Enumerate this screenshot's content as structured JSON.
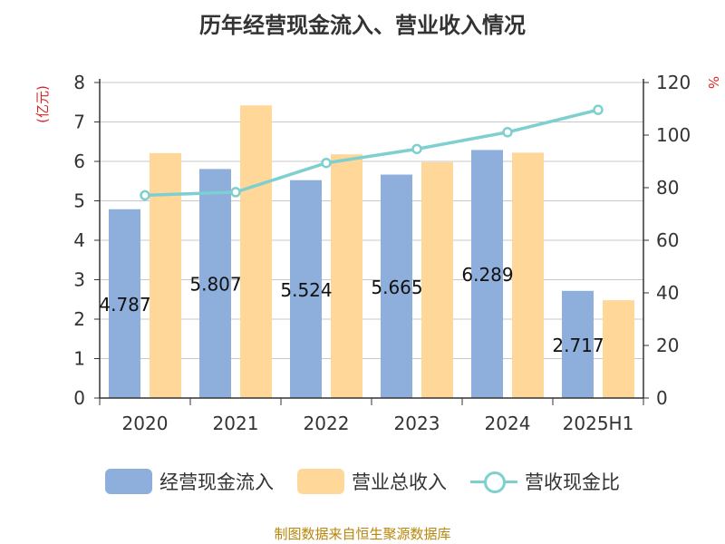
{
  "chart_data": {
    "type": "bar",
    "title": "历年经营现金流入、营业收入情况",
    "left_unit": "(亿元)",
    "right_unit": "%",
    "categories": [
      "2020",
      "2021",
      "2022",
      "2023",
      "2024",
      "2025H1"
    ],
    "ylim": [
      0,
      8
    ],
    "y_ticks": [
      "0",
      "1",
      "2",
      "3",
      "4",
      "5",
      "6",
      "7",
      "8"
    ],
    "y2lim": [
      0,
      120
    ],
    "y2_ticks": [
      "0",
      "20",
      "40",
      "60",
      "80",
      "100",
      "120"
    ],
    "grid": true,
    "legend_position": "bottom",
    "series": [
      {
        "name": "经营现金流入",
        "kind": "bar",
        "color": "#8eaedb",
        "values": [
          4.787,
          5.807,
          5.524,
          5.665,
          6.289,
          2.717
        ],
        "labels": [
          "4.787",
          "5.807",
          "5.524",
          "5.665",
          "6.289",
          "2.717"
        ]
      },
      {
        "name": "营业总收入",
        "kind": "bar",
        "color": "#ffd799",
        "values": [
          6.21,
          7.42,
          6.18,
          5.98,
          6.22,
          2.48
        ]
      },
      {
        "name": "营收现金比",
        "kind": "line",
        "axis": "right",
        "color": "#7ecfcf",
        "values": [
          77.1,
          78.3,
          89.4,
          94.7,
          101.1,
          109.6
        ]
      }
    ]
  },
  "source": "制图数据来自恒生聚源数据库"
}
